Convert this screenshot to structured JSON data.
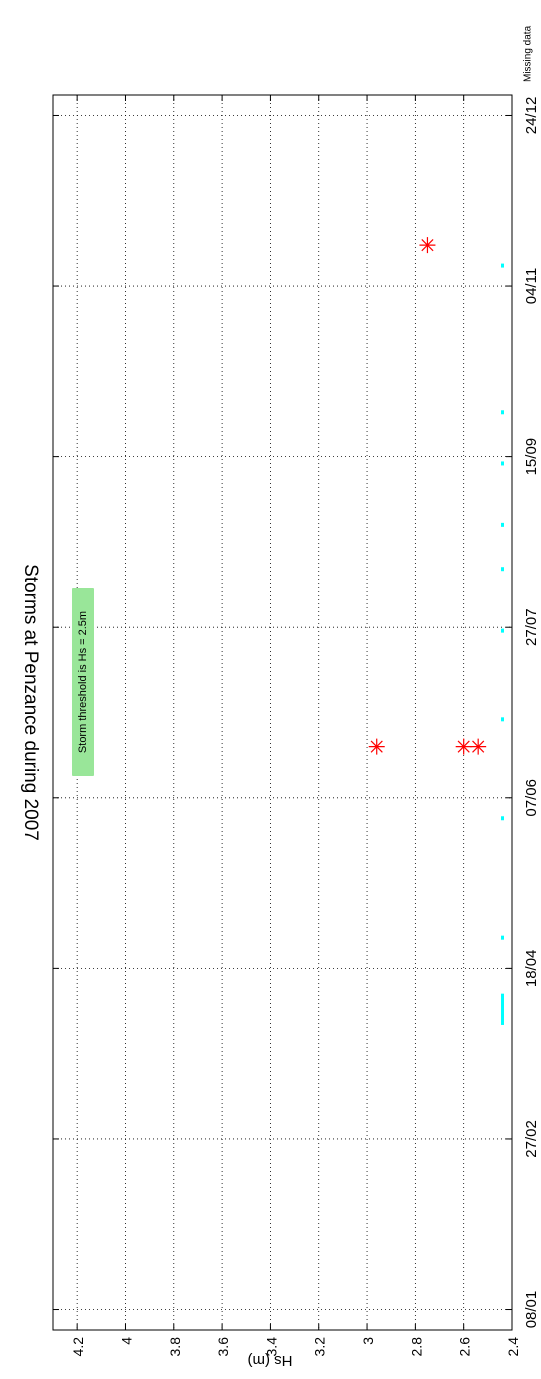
{
  "chart_data": {
    "type": "scatter",
    "title": "Storms at Penzance during 2007",
    "ylabel": "Hs (m)",
    "xlabel": "",
    "ylim": [
      2.4,
      4.3
    ],
    "xlim": [
      "2007-01-02",
      "2007-12-30"
    ],
    "y_ticks": [
      "2.4",
      "2.6",
      "2.8",
      "3",
      "3.2",
      "3.4",
      "3.6",
      "3.8",
      "4",
      "4.2"
    ],
    "x_ticks": [
      "08/01",
      "27/02",
      "18/04",
      "07/06",
      "27/07",
      "15/09",
      "04/11",
      "24/12"
    ],
    "x_tick_dates": [
      "2007-01-08",
      "2007-02-27",
      "2007-04-18",
      "2007-06-07",
      "2007-07-27",
      "2007-09-15",
      "2007-11-04",
      "2007-12-24"
    ],
    "grid": true,
    "series": [
      {
        "name": "",
        "marker": "asterisk",
        "color": "#ff0000",
        "x": [
          "2007-06-22",
          "2007-06-22",
          "2007-06-22",
          "2007-11-16"
        ],
        "y": [
          2.96,
          2.6,
          2.54,
          2.75
        ]
      }
    ],
    "annotation": "Storm threshold is Hs = 2.5m",
    "annotation_color": "#99e699",
    "missing_data": {
      "label": "Missing data",
      "color": "#00ffff",
      "dates": [
        "2007-04-02",
        "2007-04-03",
        "2007-04-04",
        "2007-04-05",
        "2007-04-06",
        "2007-04-07",
        "2007-04-08",
        "2007-04-09",
        "2007-04-10",
        "2007-04-27",
        "2007-06-01",
        "2007-06-30",
        "2007-07-26",
        "2007-08-13",
        "2007-08-26",
        "2007-09-13",
        "2007-09-28",
        "2007-11-10"
      ]
    }
  }
}
